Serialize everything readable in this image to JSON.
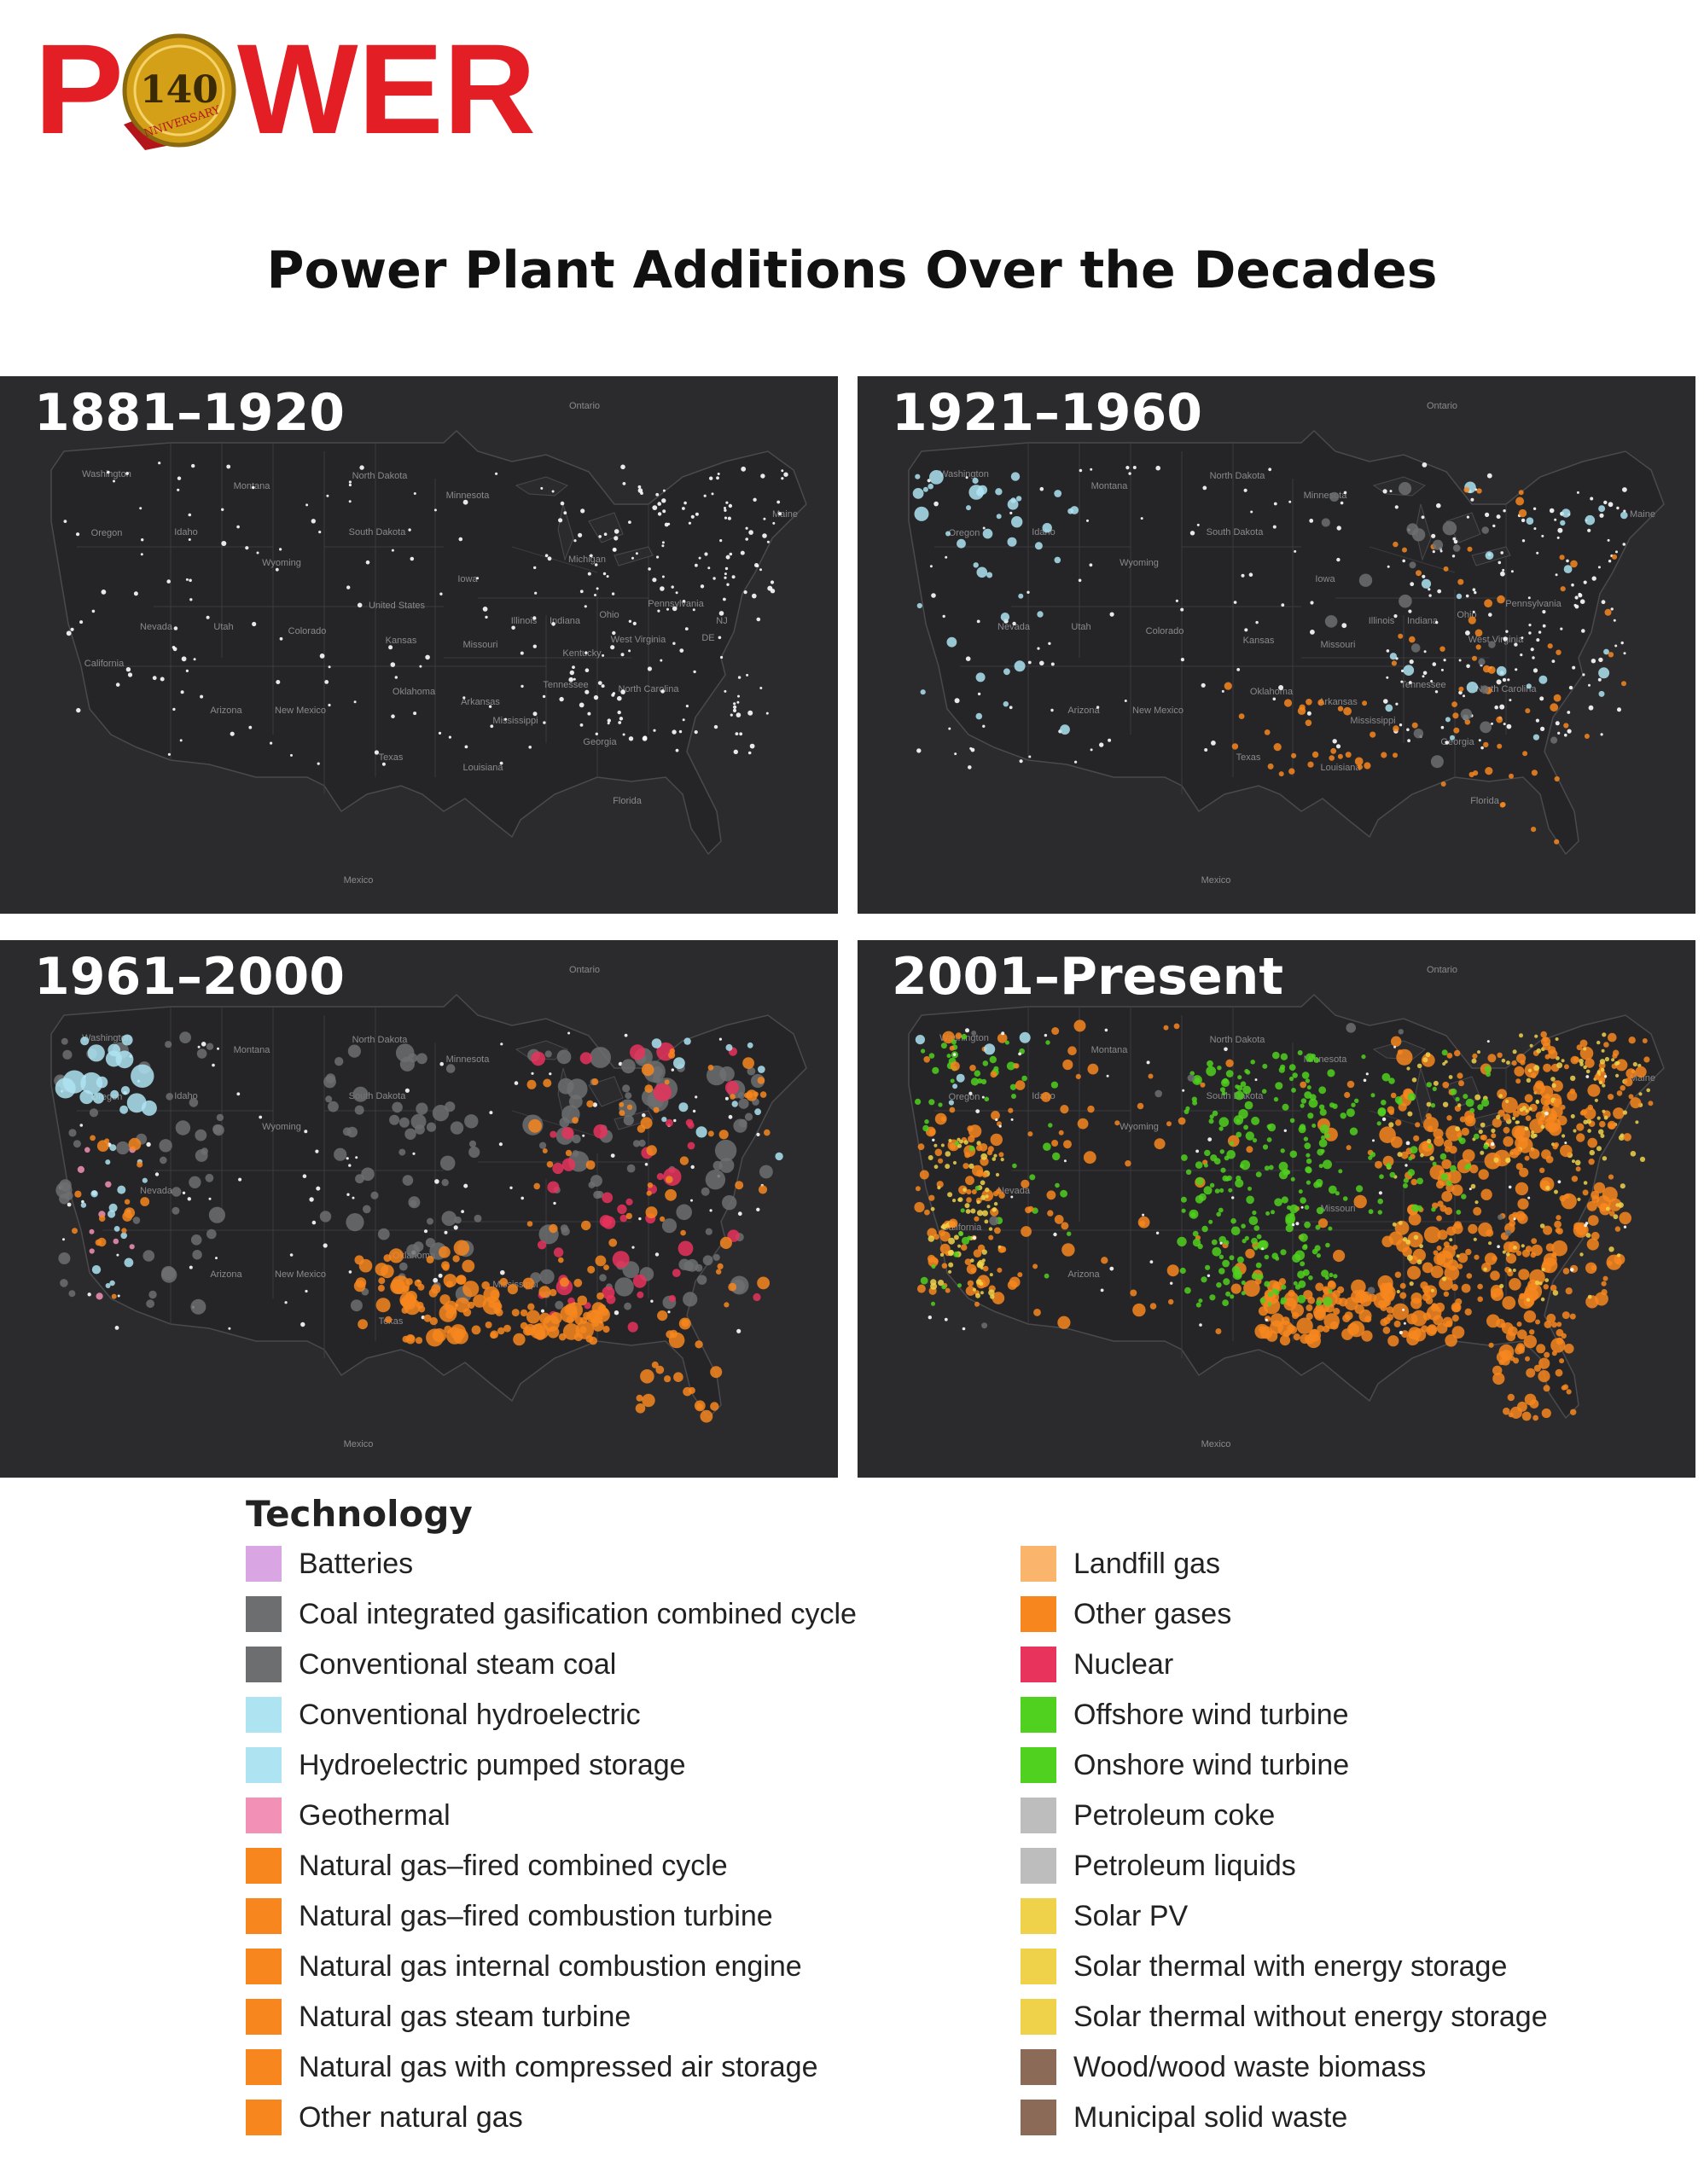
{
  "logo": {
    "word_left": "P",
    "word_right": "WER",
    "seal_number": "140",
    "seal_text": "ANNIVERSARY"
  },
  "title": "Power Plant Additions Over the Decades",
  "colors": {
    "logo_red": "#e31e24",
    "seal_gold": "#d4a017",
    "map_background": "#2b2b2d",
    "map_lines": "#4a4a4e"
  },
  "panels": [
    {
      "label": "1881–1920",
      "place_labels": [
        "Ontario",
        "Washington",
        "Montana",
        "North Dakota",
        "Minnesota",
        "Oregon",
        "Idaho",
        "South Dakota",
        "Wyoming",
        "Michigan",
        "Iowa",
        "United States",
        "Nevada",
        "Utah",
        "Colorado",
        "Kansas",
        "Illinois",
        "Indiana",
        "Ohio",
        "Pennsylvania",
        "NJ",
        "DE",
        "Missouri",
        "Kentucky",
        "West Virginia",
        "California",
        "Arizona",
        "New Mexico",
        "Oklahoma",
        "Arkansas",
        "Tennessee",
        "North Carolina",
        "Mississippi",
        "Georgia",
        "Texas",
        "Louisiana",
        "Florida",
        "Mexico",
        "Maine"
      ]
    },
    {
      "label": "1921–1960",
      "place_labels": [
        "Ontario",
        "Washington",
        "Montana",
        "North Dakota",
        "Minnesota",
        "Oregon",
        "Idaho",
        "South Dakota",
        "Wyoming",
        "Iowa",
        "Nevada",
        "Utah",
        "Colorado",
        "Kansas",
        "Illinois",
        "Indiana",
        "Ohio",
        "West Virginia",
        "Missouri",
        "Arizona",
        "New Mexico",
        "Oklahoma",
        "Arkansas",
        "Tennessee",
        "North Carolina",
        "Mississippi",
        "Georgia",
        "Texas",
        "Louisiana",
        "Florida",
        "Mexico",
        "Maine",
        "Pennsylvania"
      ]
    },
    {
      "label": "1961–2000",
      "place_labels": [
        "Ontario",
        "Washington",
        "Montana",
        "North Dakota",
        "Minnesota",
        "Oregon",
        "Idaho",
        "South Dakota",
        "Wyoming",
        "Nevada",
        "Arizona",
        "New Mexico",
        "Oklahoma",
        "Texas",
        "Mississippi",
        "Mexico"
      ]
    },
    {
      "label": "2001–Present",
      "place_labels": [
        "Ontario",
        "Washington",
        "Montana",
        "North Dakota",
        "Minnesota",
        "Oregon",
        "Idaho",
        "South Dakota",
        "Wyoming",
        "Nevada",
        "California",
        "Arizona",
        "Missouri",
        "Mexico",
        "Maine"
      ]
    }
  ],
  "legend": {
    "title": "Technology",
    "left": [
      {
        "label": "Batteries",
        "color": "#d9a6e3"
      },
      {
        "label": "Coal integrated gasification combined cycle",
        "color": "#6d6e70"
      },
      {
        "label": "Conventional steam coal",
        "color": "#6d6e70"
      },
      {
        "label": "Conventional hydroelectric",
        "color": "#aee3f2"
      },
      {
        "label": "Hydroelectric pumped storage",
        "color": "#aee3f2"
      },
      {
        "label": "Geothermal",
        "color": "#f390b5"
      },
      {
        "label": "Natural gas–fired combined cycle",
        "color": "#f7861e"
      },
      {
        "label": "Natural gas–fired combustion turbine",
        "color": "#f7861e"
      },
      {
        "label": "Natural gas internal combustion engine",
        "color": "#f7861e"
      },
      {
        "label": "Natural gas steam turbine",
        "color": "#f7861e"
      },
      {
        "label": "Natural gas with compressed air storage",
        "color": "#f7861e"
      },
      {
        "label": "Other natural gas",
        "color": "#f7861e"
      }
    ],
    "right": [
      {
        "label": "Landfill gas",
        "color": "#fbb46c"
      },
      {
        "label": "Other gases",
        "color": "#f7861e"
      },
      {
        "label": "Nuclear",
        "color": "#e8335c"
      },
      {
        "label": "Offshore wind turbine",
        "color": "#50d01f"
      },
      {
        "label": "Onshore wind turbine",
        "color": "#50d01f"
      },
      {
        "label": "Petroleum coke",
        "color": "#bdbdbd"
      },
      {
        "label": "Petroleum liquids",
        "color": "#bdbdbd"
      },
      {
        "label": "Solar PV",
        "color": "#f0d24a"
      },
      {
        "label": "Solar thermal with energy storage",
        "color": "#f0d24a"
      },
      {
        "label": "Solar thermal without energy storage",
        "color": "#f0d24a"
      },
      {
        "label": "Wood/wood waste biomass",
        "color": "#8b6a58"
      },
      {
        "label": "Municipal solid waste",
        "color": "#8b6a58"
      }
    ]
  }
}
